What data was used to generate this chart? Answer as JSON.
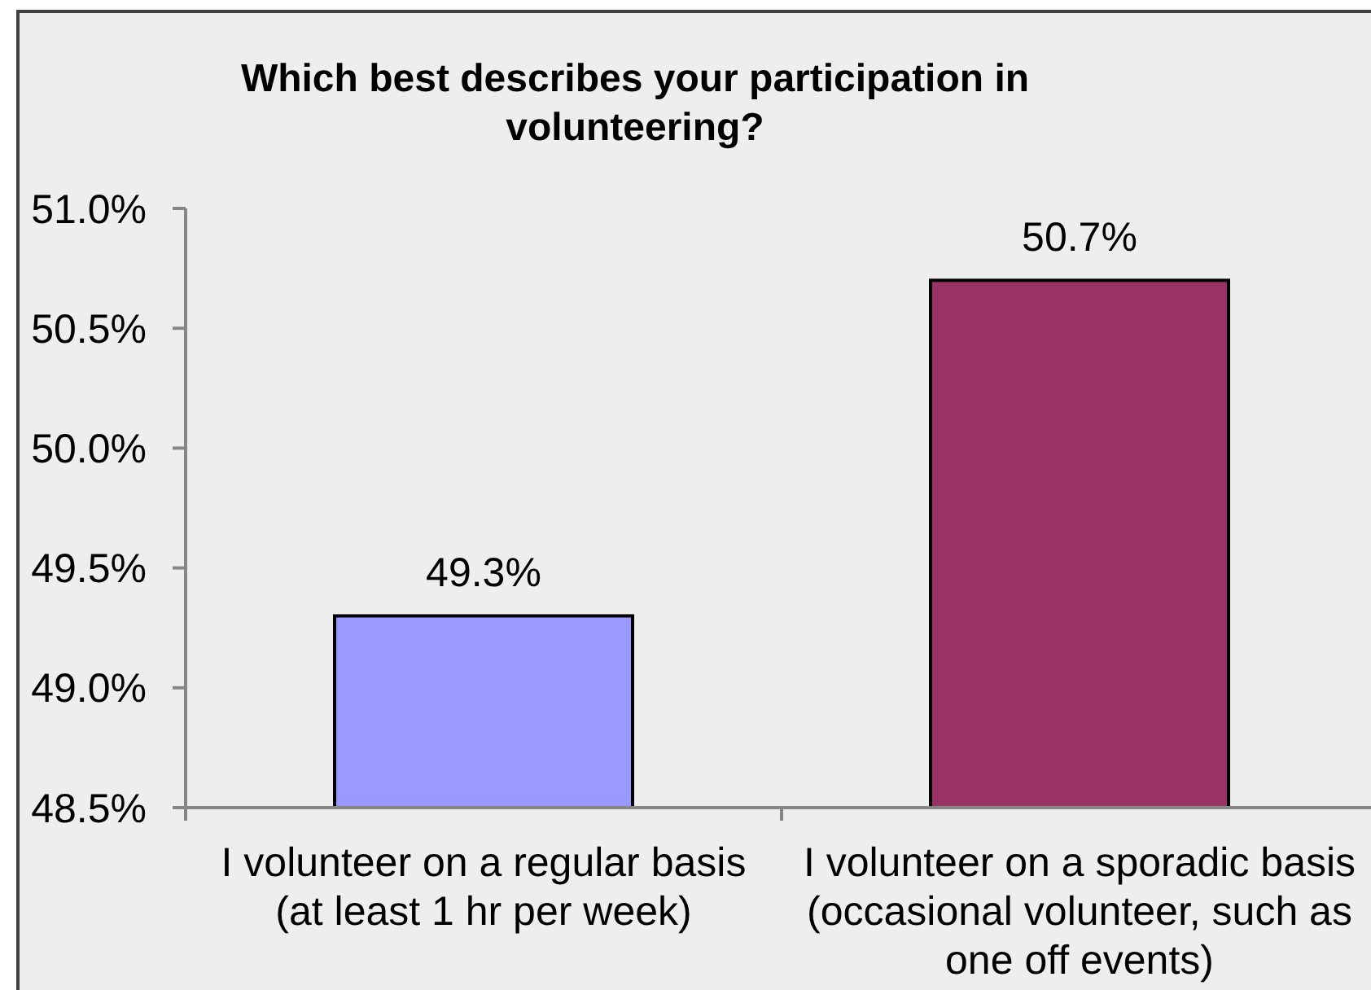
{
  "chart_data": {
    "type": "bar",
    "title": "Which best describes your participation in volunteering?",
    "categories": [
      "I volunteer on a regular basis (at least 1 hr per week)",
      "I volunteer on a sporadic basis (occasional volunteer, such as one off events)"
    ],
    "values": [
      49.3,
      50.7
    ],
    "colors": [
      "#9999ff",
      "#993366"
    ],
    "ylim": [
      48.5,
      51
    ],
    "yticks": [
      {
        "value": 48.5,
        "label": "48.5%"
      },
      {
        "value": 49,
        "label": "49.0%"
      },
      {
        "value": 49.5,
        "label": "49.5%"
      },
      {
        "value": 50,
        "label": "50.0%"
      },
      {
        "value": 50.5,
        "label": "50.5%"
      },
      {
        "value": 51,
        "label": "51.0%"
      }
    ],
    "value_labels": [
      "49.3%",
      "50.7%"
    ]
  }
}
